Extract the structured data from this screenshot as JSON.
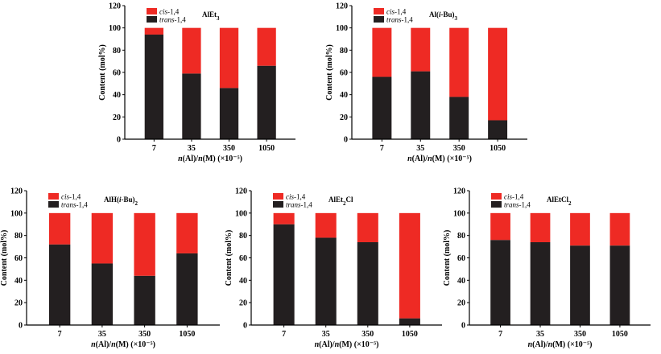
{
  "legend_colors": {
    "cis": "#ee2a24",
    "trans": "#231f20"
  },
  "chart_data": [
    {
      "type": "bar",
      "stacked": true,
      "title": "AlEt3",
      "title_parts": [
        {
          "t": "AlEt",
          "style": "normal"
        },
        {
          "t": "3",
          "style": "sub"
        }
      ],
      "categories": [
        "7",
        "35",
        "350",
        "1050"
      ],
      "series": [
        {
          "name": "trans-1,4",
          "values": [
            94,
            59,
            46,
            66
          ]
        },
        {
          "name": "cis-1,4",
          "values": [
            6,
            41,
            54,
            34
          ]
        }
      ],
      "ylabel": "Content (mol%)",
      "ylim": [
        0,
        120
      ],
      "yticks": [
        "0",
        "20",
        "40",
        "60",
        "80",
        "100",
        "120"
      ],
      "xlabel": "n(Al)/n(M) (×10⁻⁵)"
    },
    {
      "type": "bar",
      "stacked": true,
      "title": "Al(i-Bu)3",
      "title_parts": [
        {
          "t": "Al(",
          "style": "normal"
        },
        {
          "t": "i",
          "style": "italic"
        },
        {
          "t": "-Bu)",
          "style": "normal"
        },
        {
          "t": "3",
          "style": "sub"
        }
      ],
      "categories": [
        "7",
        "35",
        "350",
        "1050"
      ],
      "series": [
        {
          "name": "trans-1,4",
          "values": [
            56,
            61,
            38,
            17
          ]
        },
        {
          "name": "cis-1,4",
          "values": [
            44,
            39,
            62,
            83
          ]
        }
      ],
      "ylabel": "Content (mol%)",
      "ylim": [
        0,
        120
      ],
      "yticks": [
        "0",
        "20",
        "40",
        "60",
        "80",
        "100",
        "120"
      ],
      "xlabel": "n(Al)/n(M) (×10⁻⁵)"
    },
    {
      "type": "bar",
      "stacked": true,
      "title": "AlH(i-Bu)2",
      "title_parts": [
        {
          "t": "AlH(",
          "style": "normal"
        },
        {
          "t": "i",
          "style": "italic"
        },
        {
          "t": "-Bu)",
          "style": "normal"
        },
        {
          "t": "2",
          "style": "sub"
        }
      ],
      "categories": [
        "7",
        "35",
        "350",
        "1050"
      ],
      "series": [
        {
          "name": "trans-1,4",
          "values": [
            72,
            55,
            44,
            64
          ]
        },
        {
          "name": "cis-1,4",
          "values": [
            28,
            45,
            56,
            36
          ]
        }
      ],
      "ylabel": "Content (mol%)",
      "ylim": [
        0,
        120
      ],
      "yticks": [
        "0",
        "20",
        "40",
        "60",
        "80",
        "100",
        "120"
      ],
      "xlabel": "n(Al)/n(M) (×10⁻⁵)"
    },
    {
      "type": "bar",
      "stacked": true,
      "title": "AlEt2Cl",
      "title_parts": [
        {
          "t": "AlEt",
          "style": "normal"
        },
        {
          "t": "2",
          "style": "sub"
        },
        {
          "t": "Cl",
          "style": "normal"
        }
      ],
      "categories": [
        "7",
        "35",
        "350",
        "1050"
      ],
      "series": [
        {
          "name": "trans-1,4",
          "values": [
            90,
            78,
            74,
            6
          ]
        },
        {
          "name": "cis-1,4",
          "values": [
            10,
            22,
            26,
            94
          ]
        }
      ],
      "ylabel": "Content (mol%)",
      "ylim": [
        0,
        120
      ],
      "yticks": [
        "0",
        "20",
        "40",
        "60",
        "80",
        "100",
        "120"
      ],
      "xlabel": "n(Al)/n(M) (×10⁻⁵)"
    },
    {
      "type": "bar",
      "stacked": true,
      "title": "AlEtCl2",
      "title_parts": [
        {
          "t": "AlEtCl",
          "style": "normal"
        },
        {
          "t": "2",
          "style": "sub"
        }
      ],
      "categories": [
        "7",
        "35",
        "350",
        "1050"
      ],
      "series": [
        {
          "name": "trans-1,4",
          "values": [
            76,
            74,
            71,
            71
          ]
        },
        {
          "name": "cis-1,4",
          "values": [
            24,
            26,
            29,
            29
          ]
        }
      ],
      "ylabel": "Content (mol%)",
      "ylim": [
        0,
        120
      ],
      "yticks": [
        "0",
        "20",
        "40",
        "60",
        "80",
        "100",
        "120"
      ],
      "xlabel": "n(Al)/n(M) (×10⁻⁵)"
    }
  ]
}
